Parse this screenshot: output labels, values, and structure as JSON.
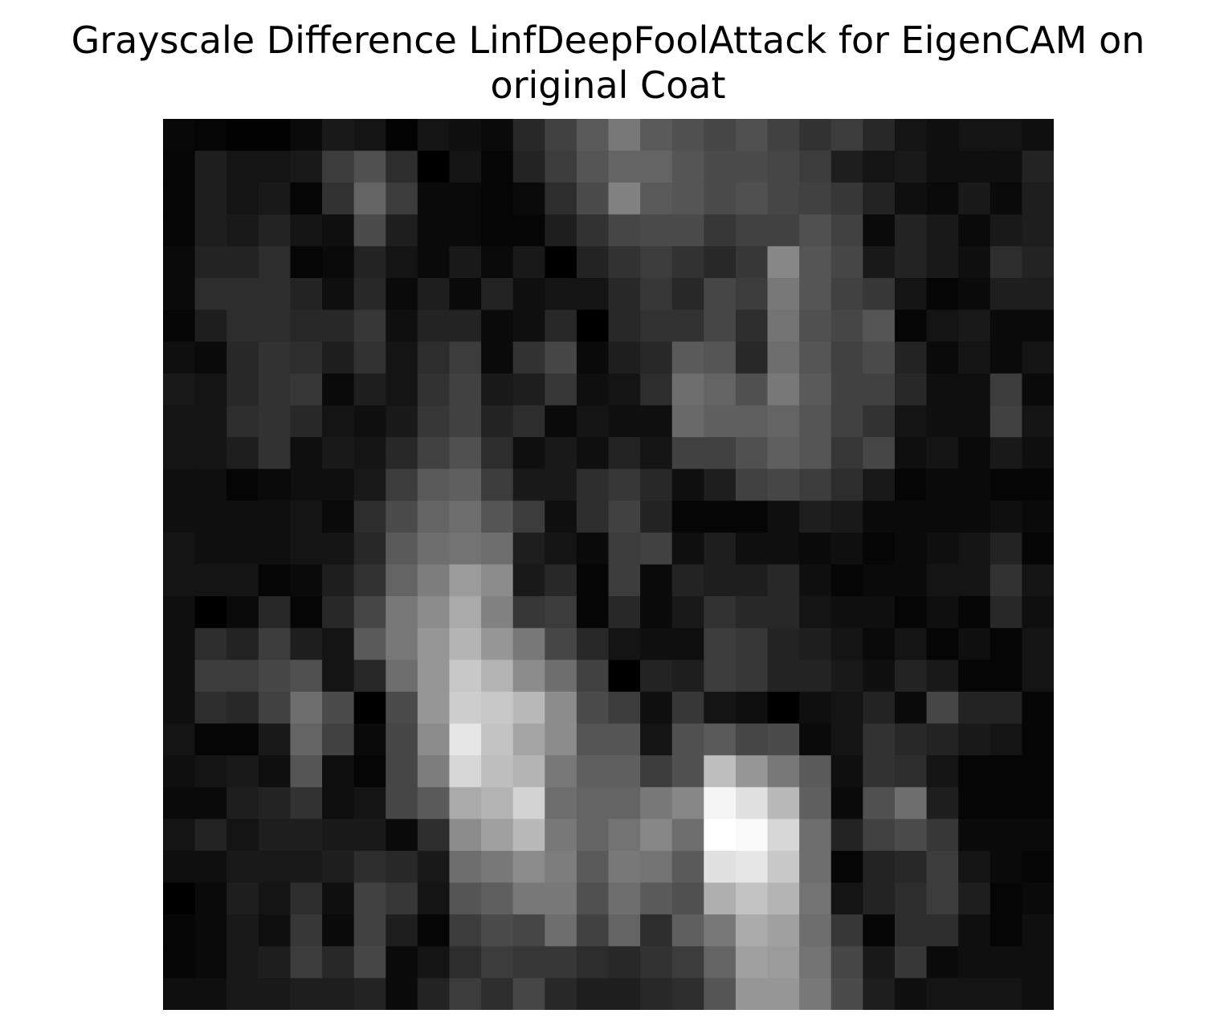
{
  "chart_data": {
    "type": "heatmap",
    "title_lines": [
      "Grayscale Difference LinfDeepFoolAttack for EigenCAM on",
      "original Coat"
    ],
    "colormap": "gray",
    "axis": "off",
    "grid": false,
    "rows": 28,
    "cols": 28,
    "values": [
      [
        8,
        5,
        2,
        2,
        10,
        25,
        20,
        3,
        20,
        15,
        10,
        40,
        65,
        90,
        120,
        90,
        80,
        70,
        80,
        65,
        50,
        60,
        40,
        20,
        15,
        20,
        20,
        15
      ],
      [
        5,
        30,
        20,
        20,
        25,
        60,
        80,
        45,
        0,
        20,
        5,
        35,
        60,
        85,
        100,
        100,
        85,
        75,
        75,
        70,
        60,
        30,
        20,
        25,
        15,
        15,
        15,
        35
      ],
      [
        5,
        30,
        20,
        25,
        5,
        50,
        100,
        60,
        10,
        10,
        5,
        10,
        45,
        75,
        130,
        90,
        85,
        75,
        80,
        70,
        65,
        55,
        35,
        15,
        10,
        25,
        10,
        30
      ],
      [
        5,
        30,
        25,
        35,
        20,
        15,
        75,
        30,
        10,
        10,
        5,
        5,
        30,
        50,
        70,
        75,
        75,
        55,
        65,
        65,
        80,
        65,
        10,
        35,
        25,
        10,
        25,
        30
      ],
      [
        10,
        35,
        35,
        45,
        5,
        10,
        35,
        20,
        10,
        25,
        10,
        25,
        0,
        35,
        50,
        60,
        50,
        40,
        55,
        135,
        85,
        70,
        25,
        35,
        25,
        15,
        45,
        35
      ],
      [
        10,
        45,
        45,
        45,
        35,
        15,
        40,
        10,
        30,
        10,
        35,
        15,
        20,
        20,
        40,
        55,
        40,
        70,
        60,
        120,
        85,
        65,
        55,
        20,
        5,
        10,
        30,
        30
      ],
      [
        5,
        30,
        45,
        45,
        40,
        40,
        55,
        15,
        35,
        35,
        10,
        15,
        40,
        0,
        40,
        50,
        50,
        70,
        45,
        115,
        80,
        70,
        85,
        5,
        20,
        25,
        10,
        10
      ],
      [
        15,
        10,
        40,
        50,
        45,
        30,
        50,
        20,
        45,
        60,
        10,
        50,
        70,
        10,
        30,
        40,
        90,
        85,
        40,
        110,
        85,
        65,
        75,
        35,
        10,
        20,
        10,
        20
      ],
      [
        25,
        20,
        40,
        50,
        55,
        10,
        30,
        20,
        50,
        65,
        25,
        30,
        55,
        15,
        20,
        45,
        110,
        100,
        80,
        120,
        90,
        65,
        65,
        40,
        15,
        15,
        60,
        10
      ],
      [
        20,
        20,
        45,
        50,
        40,
        20,
        15,
        25,
        55,
        65,
        35,
        45,
        10,
        20,
        15,
        15,
        105,
        95,
        95,
        100,
        85,
        65,
        50,
        20,
        15,
        15,
        65,
        20
      ],
      [
        20,
        20,
        30,
        50,
        15,
        25,
        20,
        40,
        65,
        80,
        45,
        15,
        25,
        15,
        35,
        20,
        65,
        65,
        80,
        95,
        85,
        55,
        70,
        15,
        20,
        10,
        25,
        15
      ],
      [
        15,
        15,
        5,
        10,
        15,
        15,
        25,
        60,
        90,
        95,
        60,
        25,
        25,
        45,
        55,
        40,
        15,
        30,
        65,
        70,
        60,
        45,
        25,
        5,
        10,
        10,
        5,
        5
      ],
      [
        15,
        15,
        15,
        15,
        20,
        10,
        45,
        75,
        100,
        110,
        85,
        60,
        15,
        45,
        65,
        35,
        5,
        5,
        5,
        15,
        30,
        25,
        10,
        10,
        10,
        10,
        15,
        10
      ],
      [
        20,
        15,
        15,
        15,
        20,
        20,
        40,
        90,
        110,
        115,
        110,
        30,
        20,
        10,
        60,
        65,
        15,
        30,
        15,
        15,
        10,
        15,
        5,
        10,
        15,
        20,
        35,
        5
      ],
      [
        20,
        20,
        20,
        5,
        10,
        30,
        50,
        100,
        125,
        155,
        140,
        25,
        40,
        5,
        60,
        10,
        35,
        30,
        30,
        40,
        15,
        5,
        10,
        10,
        20,
        20,
        50,
        20
      ],
      [
        15,
        0,
        10,
        40,
        5,
        40,
        70,
        120,
        140,
        170,
        130,
        55,
        60,
        5,
        40,
        10,
        25,
        50,
        40,
        40,
        20,
        15,
        15,
        5,
        15,
        5,
        40,
        15
      ],
      [
        15,
        45,
        35,
        60,
        30,
        20,
        90,
        120,
        150,
        180,
        150,
        120,
        70,
        40,
        20,
        15,
        15,
        60,
        55,
        35,
        30,
        20,
        10,
        20,
        5,
        15,
        5,
        20
      ],
      [
        15,
        60,
        60,
        70,
        80,
        20,
        40,
        110,
        150,
        200,
        180,
        140,
        110,
        65,
        0,
        35,
        30,
        60,
        55,
        35,
        35,
        25,
        15,
        35,
        25,
        5,
        5,
        20
      ],
      [
        15,
        45,
        40,
        65,
        110,
        75,
        0,
        75,
        150,
        205,
        200,
        185,
        140,
        75,
        60,
        15,
        55,
        20,
        15,
        0,
        15,
        20,
        35,
        10,
        70,
        35,
        35,
        5
      ],
      [
        20,
        5,
        5,
        25,
        100,
        65,
        10,
        70,
        140,
        230,
        195,
        165,
        140,
        85,
        85,
        20,
        80,
        90,
        70,
        75,
        10,
        20,
        50,
        40,
        35,
        25,
        20,
        5
      ],
      [
        15,
        20,
        25,
        15,
        85,
        15,
        5,
        70,
        125,
        215,
        190,
        180,
        120,
        95,
        95,
        60,
        80,
        190,
        150,
        120,
        90,
        15,
        50,
        45,
        20,
        5,
        5,
        5
      ],
      [
        10,
        10,
        30,
        35,
        50,
        15,
        20,
        70,
        90,
        170,
        180,
        210,
        110,
        100,
        100,
        120,
        135,
        245,
        225,
        185,
        95,
        10,
        80,
        110,
        30,
        5,
        5,
        5
      ],
      [
        20,
        35,
        20,
        30,
        30,
        25,
        25,
        10,
        45,
        140,
        160,
        185,
        120,
        100,
        115,
        135,
        110,
        255,
        250,
        215,
        110,
        35,
        65,
        75,
        55,
        10,
        10,
        10
      ],
      [
        15,
        15,
        25,
        25,
        25,
        30,
        45,
        40,
        25,
        110,
        120,
        140,
        125,
        90,
        120,
        115,
        90,
        225,
        230,
        200,
        110,
        5,
        35,
        40,
        60,
        20,
        10,
        5
      ],
      [
        0,
        10,
        30,
        20,
        45,
        15,
        65,
        55,
        20,
        85,
        95,
        120,
        120,
        80,
        110,
        90,
        80,
        175,
        195,
        180,
        115,
        20,
        35,
        45,
        60,
        30,
        5,
        10
      ],
      [
        5,
        10,
        25,
        15,
        55,
        10,
        65,
        30,
        5,
        60,
        75,
        70,
        110,
        65,
        100,
        45,
        95,
        120,
        170,
        160,
        110,
        55,
        5,
        45,
        45,
        15,
        5,
        15
      ],
      [
        5,
        10,
        25,
        30,
        60,
        40,
        70,
        10,
        20,
        45,
        60,
        55,
        55,
        45,
        40,
        50,
        60,
        100,
        160,
        155,
        115,
        70,
        25,
        55,
        10,
        15,
        15,
        15
      ],
      [
        15,
        15,
        25,
        25,
        30,
        30,
        35,
        10,
        35,
        60,
        45,
        70,
        40,
        30,
        30,
        40,
        45,
        85,
        150,
        150,
        120,
        75,
        30,
        15,
        20,
        20,
        20,
        15
      ]
    ]
  }
}
